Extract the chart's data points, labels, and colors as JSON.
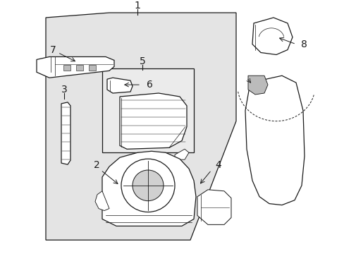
{
  "bg_color": "#ffffff",
  "panel_bg": "#e8e8e8",
  "line_color": "#1a1a1a",
  "lw": 0.9
}
